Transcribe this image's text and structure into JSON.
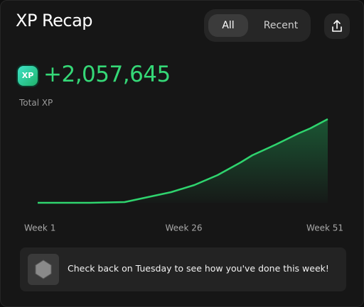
{
  "header": {
    "title": "XP Recap",
    "tabs": [
      "All",
      "Recent"
    ]
  },
  "summary": {
    "badge": "XP",
    "total": "+2,057,645",
    "label": "Total XP"
  },
  "chart_data": {
    "type": "area",
    "x": [
      1,
      5,
      10,
      16,
      20,
      24,
      28,
      32,
      36,
      38,
      42,
      46,
      48,
      51
    ],
    "values": [
      0,
      0,
      0,
      17000,
      140000,
      262000,
      436000,
      680000,
      994000,
      1168000,
      1430000,
      1709000,
      1831000,
      2057645
    ],
    "color": "#2fd46e",
    "xlim": [
      1,
      51
    ],
    "xticks": [
      {
        "value": 1,
        "label": "Week 1"
      },
      {
        "value": 26,
        "label": "Week 26"
      },
      {
        "value": 51,
        "label": "Week 51"
      }
    ]
  },
  "notice": {
    "text": "Check back on Tuesday to see how you've done this week!"
  }
}
